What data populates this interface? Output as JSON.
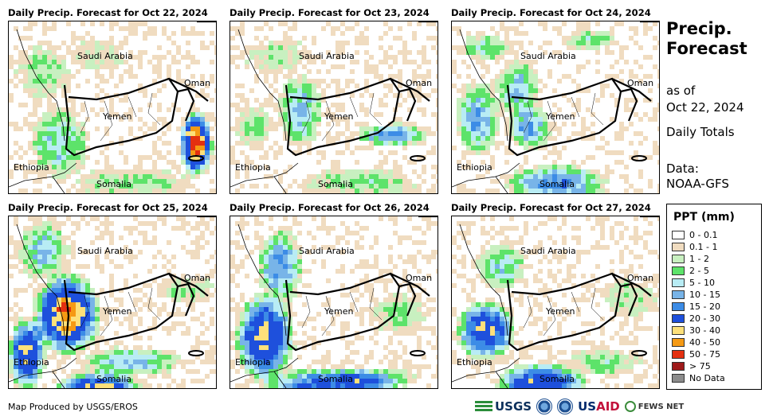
{
  "panels": [
    {
      "title": "Daily Precip. Forecast for Oct 22, 2024",
      "day": 0
    },
    {
      "title": "Daily Precip. Forecast for Oct 23, 2024",
      "day": 1
    },
    {
      "title": "Daily Precip. Forecast for Oct 24, 2024",
      "day": 2
    },
    {
      "title": "Daily Precip. Forecast for Oct 25, 2024",
      "day": 3
    },
    {
      "title": "Daily Precip. Forecast for Oct 26, 2024",
      "day": 4
    },
    {
      "title": "Daily Precip. Forecast for Oct 27, 2024",
      "day": 5
    }
  ],
  "map_labels": {
    "saudi": "Saudi Arabia",
    "oman": "Oman",
    "yemen": "Yemen",
    "ethiopia": "Ethiopia",
    "somalia": "Somalia"
  },
  "side": {
    "title_line1": "Precip.",
    "title_line2": "Forecast",
    "as_of": "as of",
    "date": "Oct 22, 2024",
    "totals": "Daily Totals",
    "data_label": "Data:",
    "data_source": "NOAA-GFS"
  },
  "legend": {
    "title": "PPT (mm)",
    "items": [
      {
        "label": "0 - 0.1",
        "color": "#ffffff"
      },
      {
        "label": "0.1 - 1",
        "color": "#f0dcc0"
      },
      {
        "label": "1 - 2",
        "color": "#c8f0c0"
      },
      {
        "label": "2 - 5",
        "color": "#5de36a"
      },
      {
        "label": "5 - 10",
        "color": "#b8ecf4"
      },
      {
        "label": "10 - 15",
        "color": "#78b4e8"
      },
      {
        "label": "15 - 20",
        "color": "#3c8ce6"
      },
      {
        "label": "20 - 30",
        "color": "#1e50dc"
      },
      {
        "label": "30 - 40",
        "color": "#fde07a"
      },
      {
        "label": "40 - 50",
        "color": "#f59a14"
      },
      {
        "label": "50 - 75",
        "color": "#e43010"
      },
      {
        "label": "> 75",
        "color": "#9e1a1a"
      },
      {
        "label": "No Data",
        "color": "#8c8c8c"
      }
    ]
  },
  "credit": "Map Produced by USGS/EROS",
  "logos": {
    "usgs": "USGS",
    "usaid_us": "US",
    "usaid_aid": "AID",
    "fews": "FEWS NET"
  }
}
